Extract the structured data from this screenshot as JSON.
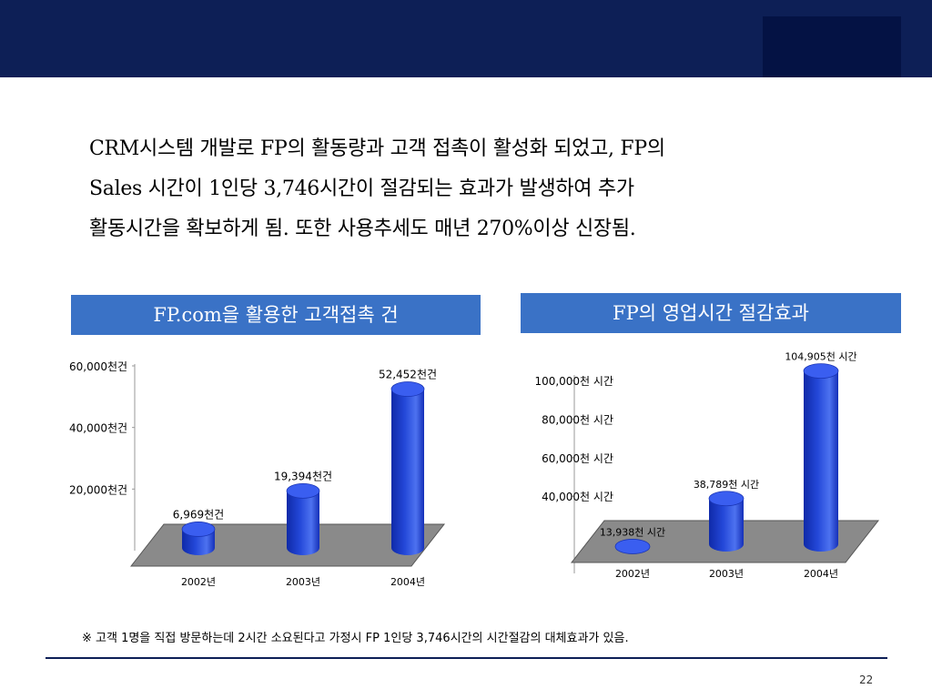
{
  "intro": {
    "line1": "CRM시스템 개발로 FP의 활동량과 고객 접촉이 활성화 되었고, FP의",
    "line2": "Sales 시간이 1인당 3,746시간이 절감되는 효과가  발생하여 추가",
    "line3": "활동시간을 확보하게 됨. 또한 사용추세도 매년 270%이상 신장됨."
  },
  "headers": {
    "left": "FP.com을 활용한 고객접촉 건",
    "right": "FP의 영업시간 절감효과"
  },
  "chart_data": [
    {
      "type": "bar",
      "title": "FP.com을 활용한 고객접촉 건",
      "categories": [
        "2002년",
        "2003년",
        "2004년"
      ],
      "values": [
        6969,
        19394,
        52452
      ],
      "value_labels": [
        "6,969천건",
        "19,394천건",
        "52,452천건"
      ],
      "y_ticks": [
        20000,
        40000,
        60000
      ],
      "y_tick_labels": [
        "20,000천건",
        "40,000천건",
        "60,000천건"
      ],
      "ylim": [
        0,
        60000
      ],
      "bar_color": "#2347d8",
      "floor_color": "#8a8a8a",
      "grid": false
    },
    {
      "type": "bar",
      "title": "FP의 영업시간 절감효과",
      "categories": [
        "2002년",
        "2003년",
        "2004년"
      ],
      "values": [
        13938,
        38789,
        104905
      ],
      "value_labels": [
        "13,938천 시간",
        "38,789천 시간",
        "104,905천 시간"
      ],
      "y_ticks": [
        40000,
        60000,
        80000,
        100000
      ],
      "y_tick_labels": [
        "40,000천 시간",
        "60,000천 시간",
        "80,000천 시간",
        "100,000천 시간"
      ],
      "ylim": [
        0,
        100000
      ],
      "bar_color": "#2347d8",
      "floor_color": "#8a8a8a",
      "grid": false
    }
  ],
  "footnote": "※ 고객 1명을 직접 방문하는데 2시간 소요된다고 가정시 FP 1인당 3,746시간의 시간절감의 대체효과가 있음.",
  "page_number": "22"
}
